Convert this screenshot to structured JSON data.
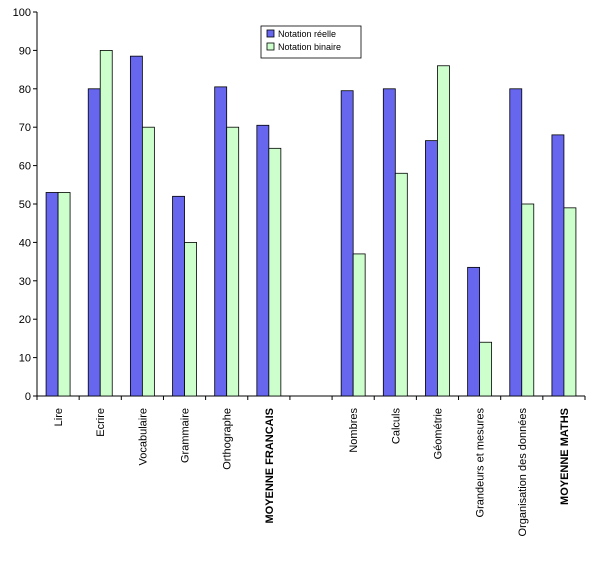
{
  "chart_data": {
    "type": "bar",
    "categories": [
      "Lire",
      "Ecrire",
      "Vocabulaire",
      "Grammaire",
      "Orthographe",
      "MOYENNE FRANCAIS",
      "",
      "Nombres",
      "Calculs",
      "Géométrie",
      "Grandeurs et mesures",
      "Organisation des données",
      "MOYENNE MATHS"
    ],
    "bold_categories": [
      "MOYENNE FRANCAIS",
      "MOYENNE MATHS"
    ],
    "series": [
      {
        "name": "Notation réelle",
        "color": "#6666ee",
        "values": [
          53,
          80,
          88.5,
          52,
          80.5,
          70.5,
          null,
          79.5,
          80,
          66.5,
          33.5,
          80,
          68
        ]
      },
      {
        "name": "Notation binaire",
        "color": "#ccffcc",
        "values": [
          53,
          90,
          70,
          40,
          70,
          64.5,
          null,
          37,
          58,
          86,
          14,
          50,
          49
        ]
      }
    ],
    "yticks": [
      0,
      10,
      20,
      30,
      40,
      50,
      60,
      70,
      80,
      90,
      100
    ],
    "ylim": [
      0,
      100
    ],
    "grid": false,
    "legend_position": "top-center"
  }
}
